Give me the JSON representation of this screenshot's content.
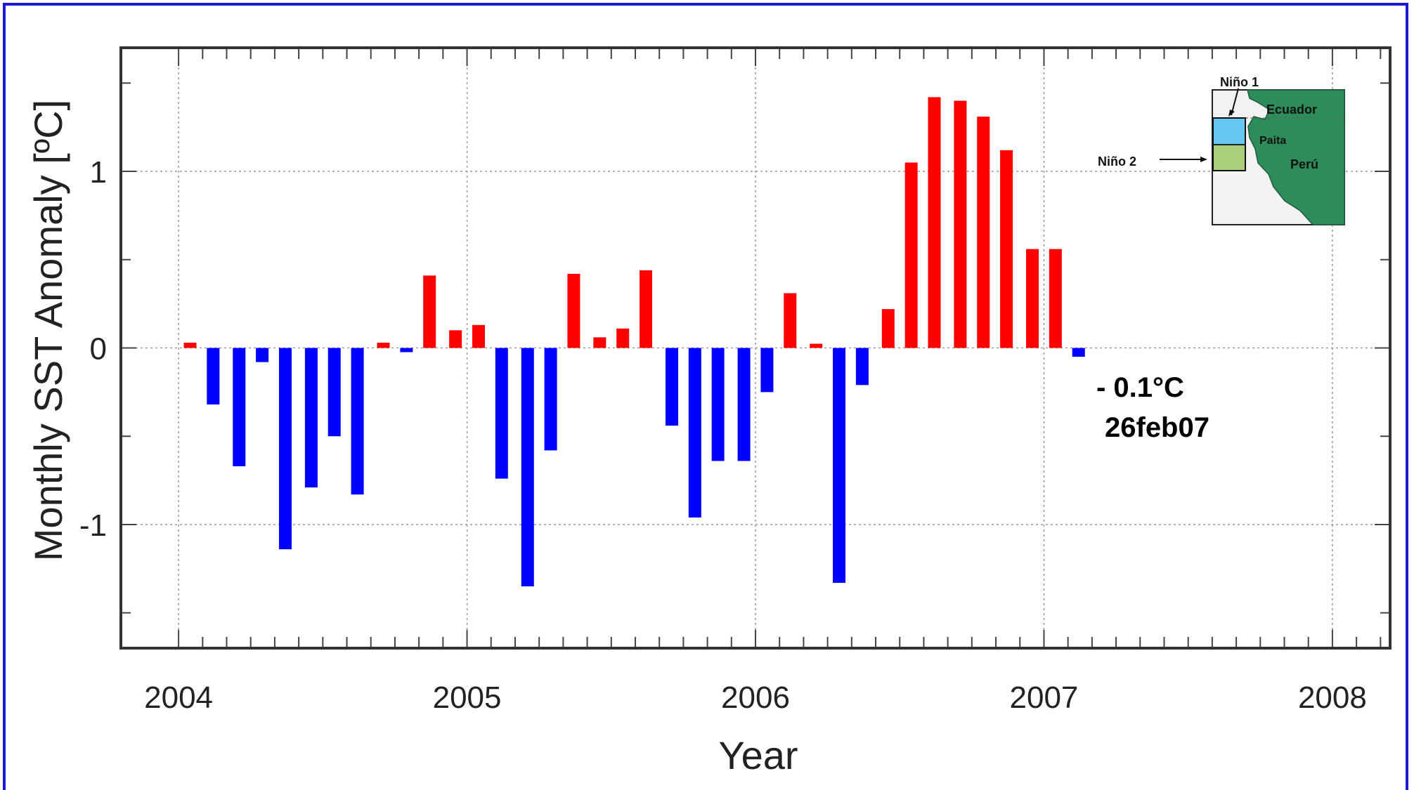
{
  "chart_data": {
    "type": "bar",
    "xlabel": "Year",
    "ylabel": "Monthly SST Anomaly [ºC]",
    "xlim": [
      2003.8,
      2008.2
    ],
    "ylim": [
      -1.7,
      1.7
    ],
    "xticks": [
      2004,
      2005,
      2006,
      2007,
      2008
    ],
    "yticks": [
      -1,
      0,
      1
    ],
    "grid": true,
    "positive_color": "#ff0000",
    "negative_color": "#0000ff",
    "x": [
      2004.04,
      2004.12,
      2004.21,
      2004.29,
      2004.37,
      2004.46,
      2004.54,
      2004.62,
      2004.71,
      2004.79,
      2004.87,
      2004.96,
      2005.04,
      2005.12,
      2005.21,
      2005.29,
      2005.37,
      2005.46,
      2005.54,
      2005.62,
      2005.71,
      2005.79,
      2005.87,
      2005.96,
      2006.04,
      2006.12,
      2006.21,
      2006.29,
      2006.37,
      2006.46,
      2006.54,
      2006.62,
      2006.71,
      2006.79,
      2006.87,
      2006.96,
      2007.04,
      2007.12
    ],
    "values": [
      0.03,
      -0.32,
      -0.67,
      -0.08,
      -1.14,
      -0.79,
      -0.5,
      -0.83,
      0.03,
      -0.02,
      0.41,
      0.1,
      0.13,
      -0.74,
      -1.35,
      -0.58,
      0.42,
      0.06,
      0.11,
      0.44,
      -0.44,
      -0.96,
      -0.64,
      -0.64,
      -0.25,
      0.31,
      0.01,
      -1.33,
      -0.21,
      0.22,
      1.05,
      1.42,
      1.4,
      1.31,
      1.12,
      0.56,
      0.56,
      -0.05
    ],
    "annotations": [
      "- 0.1°C",
      "26feb07"
    ]
  },
  "inset_map": {
    "labels": {
      "nino1": "Niño 1",
      "nino2": "Niño 2",
      "ecuador": "Ecuador",
      "paita": "Paita",
      "peru": "Perú"
    },
    "colors": {
      "land": "#2e8b5a",
      "sea": "#f2f2f2",
      "nino1": "#66c8f0",
      "nino2": "#a8d07a"
    }
  },
  "frame_color": "#1a1ad0"
}
